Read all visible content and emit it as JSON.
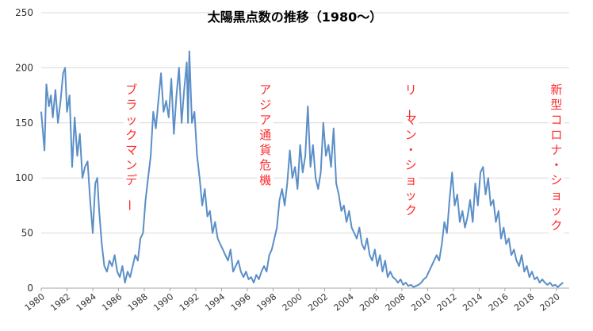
{
  "chart_data": {
    "type": "line",
    "title": "太陽黒点数の推移（1980～）",
    "xlabel": "",
    "ylabel": "",
    "ylim": [
      0,
      250
    ],
    "xlim": [
      1980,
      2020.5
    ],
    "grid": "horizontal",
    "y_ticks": [
      "0",
      "50",
      "100",
      "150",
      "200",
      "250"
    ],
    "x_ticks": [
      "1980",
      "1982",
      "1984",
      "1986",
      "1988",
      "1990",
      "1992",
      "1994",
      "1996",
      "1998",
      "2000",
      "2002",
      "2004",
      "2006",
      "2008",
      "2010",
      "2012",
      "2014",
      "2016",
      "2018",
      "2020"
    ],
    "series": [
      {
        "name": "太陽黒点数",
        "color": "#5b8fc7",
        "points": [
          [
            1980.0,
            160
          ],
          [
            1980.25,
            125
          ],
          [
            1980.4,
            185
          ],
          [
            1980.6,
            165
          ],
          [
            1980.75,
            175
          ],
          [
            1980.9,
            155
          ],
          [
            1981.1,
            180
          ],
          [
            1981.3,
            150
          ],
          [
            1981.5,
            170
          ],
          [
            1981.7,
            195
          ],
          [
            1981.85,
            200
          ],
          [
            1982.0,
            160
          ],
          [
            1982.2,
            175
          ],
          [
            1982.4,
            110
          ],
          [
            1982.6,
            155
          ],
          [
            1982.8,
            120
          ],
          [
            1983.0,
            140
          ],
          [
            1983.2,
            100
          ],
          [
            1983.4,
            110
          ],
          [
            1983.6,
            115
          ],
          [
            1983.8,
            80
          ],
          [
            1984.0,
            50
          ],
          [
            1984.2,
            95
          ],
          [
            1984.35,
            100
          ],
          [
            1984.5,
            70
          ],
          [
            1984.7,
            40
          ],
          [
            1984.9,
            20
          ],
          [
            1985.1,
            15
          ],
          [
            1985.3,
            25
          ],
          [
            1985.5,
            20
          ],
          [
            1985.7,
            30
          ],
          [
            1985.9,
            15
          ],
          [
            1986.1,
            10
          ],
          [
            1986.3,
            20
          ],
          [
            1986.5,
            5
          ],
          [
            1986.7,
            15
          ],
          [
            1986.9,
            10
          ],
          [
            1987.1,
            20
          ],
          [
            1987.3,
            30
          ],
          [
            1987.5,
            25
          ],
          [
            1987.7,
            45
          ],
          [
            1987.9,
            50
          ],
          [
            1988.1,
            80
          ],
          [
            1988.3,
            100
          ],
          [
            1988.5,
            120
          ],
          [
            1988.7,
            160
          ],
          [
            1988.9,
            145
          ],
          [
            1989.1,
            170
          ],
          [
            1989.3,
            195
          ],
          [
            1989.5,
            160
          ],
          [
            1989.7,
            170
          ],
          [
            1989.9,
            155
          ],
          [
            1990.1,
            190
          ],
          [
            1990.3,
            140
          ],
          [
            1990.5,
            175
          ],
          [
            1990.7,
            200
          ],
          [
            1990.9,
            150
          ],
          [
            1991.1,
            180
          ],
          [
            1991.3,
            205
          ],
          [
            1991.4,
            150
          ],
          [
            1991.5,
            215
          ],
          [
            1991.7,
            150
          ],
          [
            1991.9,
            160
          ],
          [
            1992.1,
            120
          ],
          [
            1992.3,
            100
          ],
          [
            1992.5,
            75
          ],
          [
            1992.7,
            90
          ],
          [
            1992.9,
            65
          ],
          [
            1993.1,
            70
          ],
          [
            1993.3,
            50
          ],
          [
            1993.5,
            60
          ],
          [
            1993.7,
            45
          ],
          [
            1993.9,
            40
          ],
          [
            1994.1,
            35
          ],
          [
            1994.3,
            30
          ],
          [
            1994.5,
            25
          ],
          [
            1994.7,
            35
          ],
          [
            1994.9,
            15
          ],
          [
            1995.1,
            20
          ],
          [
            1995.3,
            25
          ],
          [
            1995.5,
            15
          ],
          [
            1995.7,
            10
          ],
          [
            1995.9,
            15
          ],
          [
            1996.1,
            8
          ],
          [
            1996.3,
            10
          ],
          [
            1996.5,
            5
          ],
          [
            1996.7,
            12
          ],
          [
            1996.9,
            8
          ],
          [
            1997.1,
            15
          ],
          [
            1997.3,
            20
          ],
          [
            1997.5,
            15
          ],
          [
            1997.7,
            30
          ],
          [
            1997.9,
            35
          ],
          [
            1998.1,
            45
          ],
          [
            1998.3,
            55
          ],
          [
            1998.5,
            80
          ],
          [
            1998.7,
            90
          ],
          [
            1998.9,
            75
          ],
          [
            1999.1,
            95
          ],
          [
            1999.3,
            125
          ],
          [
            1999.5,
            100
          ],
          [
            1999.7,
            110
          ],
          [
            1999.9,
            90
          ],
          [
            2000.1,
            130
          ],
          [
            2000.3,
            105
          ],
          [
            2000.5,
            120
          ],
          [
            2000.7,
            165
          ],
          [
            2000.9,
            110
          ],
          [
            2001.1,
            130
          ],
          [
            2001.3,
            100
          ],
          [
            2001.5,
            90
          ],
          [
            2001.7,
            105
          ],
          [
            2001.9,
            150
          ],
          [
            2002.1,
            120
          ],
          [
            2002.3,
            130
          ],
          [
            2002.5,
            110
          ],
          [
            2002.7,
            145
          ],
          [
            2002.9,
            95
          ],
          [
            2003.1,
            85
          ],
          [
            2003.3,
            70
          ],
          [
            2003.5,
            75
          ],
          [
            2003.7,
            60
          ],
          [
            2003.9,
            70
          ],
          [
            2004.1,
            55
          ],
          [
            2004.3,
            50
          ],
          [
            2004.5,
            45
          ],
          [
            2004.7,
            55
          ],
          [
            2004.9,
            40
          ],
          [
            2005.1,
            35
          ],
          [
            2005.3,
            45
          ],
          [
            2005.5,
            30
          ],
          [
            2005.7,
            25
          ],
          [
            2005.9,
            35
          ],
          [
            2006.1,
            20
          ],
          [
            2006.3,
            30
          ],
          [
            2006.5,
            15
          ],
          [
            2006.7,
            25
          ],
          [
            2006.9,
            10
          ],
          [
            2007.1,
            15
          ],
          [
            2007.3,
            10
          ],
          [
            2007.5,
            8
          ],
          [
            2007.7,
            5
          ],
          [
            2007.9,
            8
          ],
          [
            2008.1,
            3
          ],
          [
            2008.3,
            5
          ],
          [
            2008.5,
            2
          ],
          [
            2008.7,
            3
          ],
          [
            2008.9,
            1
          ],
          [
            2009.1,
            2
          ],
          [
            2009.3,
            3
          ],
          [
            2009.5,
            5
          ],
          [
            2009.7,
            8
          ],
          [
            2009.9,
            10
          ],
          [
            2010.1,
            15
          ],
          [
            2010.3,
            20
          ],
          [
            2010.5,
            25
          ],
          [
            2010.7,
            30
          ],
          [
            2010.9,
            25
          ],
          [
            2011.1,
            40
          ],
          [
            2011.3,
            60
          ],
          [
            2011.5,
            50
          ],
          [
            2011.7,
            80
          ],
          [
            2011.9,
            105
          ],
          [
            2012.1,
            75
          ],
          [
            2012.3,
            85
          ],
          [
            2012.5,
            60
          ],
          [
            2012.7,
            70
          ],
          [
            2012.9,
            55
          ],
          [
            2013.1,
            65
          ],
          [
            2013.3,
            80
          ],
          [
            2013.5,
            60
          ],
          [
            2013.7,
            95
          ],
          [
            2013.9,
            75
          ],
          [
            2014.1,
            105
          ],
          [
            2014.3,
            110
          ],
          [
            2014.5,
            85
          ],
          [
            2014.7,
            100
          ],
          [
            2014.9,
            75
          ],
          [
            2015.1,
            80
          ],
          [
            2015.3,
            60
          ],
          [
            2015.5,
            70
          ],
          [
            2015.7,
            45
          ],
          [
            2015.9,
            55
          ],
          [
            2016.1,
            40
          ],
          [
            2016.3,
            45
          ],
          [
            2016.5,
            30
          ],
          [
            2016.7,
            35
          ],
          [
            2016.9,
            25
          ],
          [
            2017.1,
            20
          ],
          [
            2017.3,
            30
          ],
          [
            2017.5,
            15
          ],
          [
            2017.7,
            20
          ],
          [
            2017.9,
            10
          ],
          [
            2018.1,
            15
          ],
          [
            2018.3,
            8
          ],
          [
            2018.5,
            10
          ],
          [
            2018.7,
            5
          ],
          [
            2018.9,
            8
          ],
          [
            2019.1,
            5
          ],
          [
            2019.3,
            3
          ],
          [
            2019.5,
            5
          ],
          [
            2019.7,
            2
          ],
          [
            2019.9,
            3
          ],
          [
            2020.1,
            1
          ],
          [
            2020.3,
            3
          ],
          [
            2020.5,
            5
          ]
        ]
      }
    ],
    "annotations": [
      {
        "text": "ブラックマンデー",
        "x": 1987
      },
      {
        "text": "アジア通貨危機",
        "x": 1997.4
      },
      {
        "text": "リーマン・ショック",
        "x": 2008.7
      },
      {
        "text": "新型コロナ・ショック",
        "x": 2020.0
      }
    ],
    "styles": {
      "line_color": "#5b8fc7",
      "grid_color": "#d9d9d9",
      "annotation_color": "#ff2a2a"
    }
  }
}
